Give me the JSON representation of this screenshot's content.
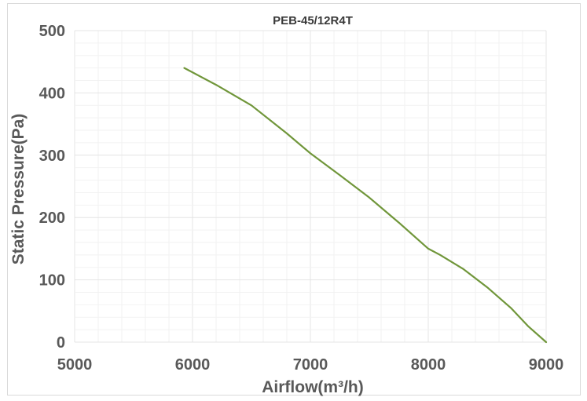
{
  "chart_data": {
    "type": "line",
    "title": "PEB-45/12R4T",
    "xlabel": "Airflow(m³/h)",
    "ylabel": "Static Pressure(Pa)",
    "xlim": [
      5000,
      9000
    ],
    "ylim": [
      0,
      500
    ],
    "x_ticks": [
      5000,
      6000,
      7000,
      8000,
      9000
    ],
    "y_ticks": [
      0,
      100,
      200,
      300,
      400,
      500
    ],
    "x_tick_labels": [
      "5000",
      "6000",
      "7000",
      "8000",
      "9000"
    ],
    "y_tick_labels": [
      "0",
      "100",
      "200",
      "300",
      "400",
      "500"
    ],
    "grid": true,
    "legend": "none",
    "series": [
      {
        "color": "#70963a",
        "x": [
          5930,
          6200,
          6500,
          6800,
          7000,
          7250,
          7500,
          7750,
          8000,
          8100,
          8300,
          8500,
          8700,
          8850,
          9000
        ],
        "y": [
          440,
          413,
          380,
          335,
          303,
          268,
          232,
          192,
          150,
          140,
          117,
          88,
          55,
          25,
          0
        ]
      }
    ]
  }
}
